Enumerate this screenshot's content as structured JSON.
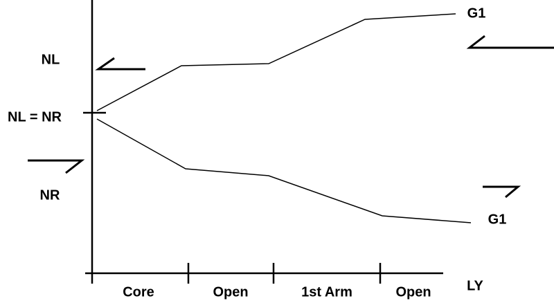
{
  "left_labels": [
    "NL",
    "NL = NR",
    "NR"
  ],
  "right_labels": [
    "G1",
    "G1"
  ],
  "x_segments": [
    "Core",
    "Open",
    "1st Arm",
    "Open"
  ],
  "x_axis_label": "LY"
}
